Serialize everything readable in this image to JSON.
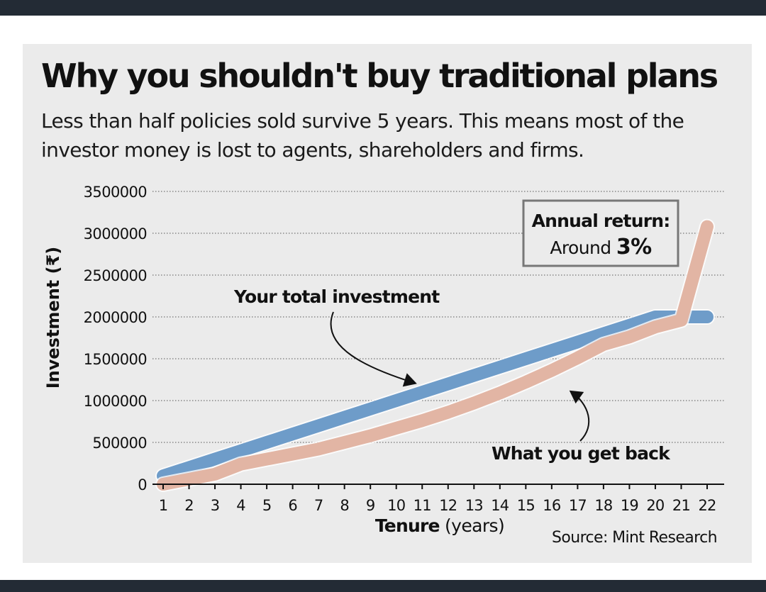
{
  "page": {
    "title": "Why you shouldn't buy traditional plans",
    "subtitle": "Less than half policies sold survive 5 years. This means most of the investor money is lost to agents, shareholders and firms.",
    "source": "Source: Mint Research"
  },
  "chart_data": {
    "type": "line",
    "ylabel": "Investment (₹)",
    "xlabel_bold": "Tenure",
    "xlabel_rest": " (years)",
    "ylim": [
      0,
      3500000
    ],
    "yticks": [
      0,
      500000,
      1000000,
      1500000,
      2000000,
      2500000,
      3000000,
      3500000
    ],
    "x": [
      1,
      2,
      3,
      4,
      5,
      6,
      7,
      8,
      9,
      10,
      11,
      12,
      13,
      14,
      15,
      16,
      17,
      18,
      19,
      20,
      21,
      22
    ],
    "grid": true,
    "series": [
      {
        "name": "Your total investment",
        "color": "#6e9cc9",
        "values": [
          100000,
          200000,
          300000,
          400000,
          500000,
          600000,
          700000,
          800000,
          900000,
          1000000,
          1100000,
          1200000,
          1300000,
          1400000,
          1500000,
          1600000,
          1700000,
          1800000,
          1900000,
          2000000,
          2000000,
          2000000
        ]
      },
      {
        "name": "What you get back",
        "color": "#e2b5a4",
        "values": [
          0,
          60000,
          120000,
          240000,
          300000,
          360000,
          420000,
          500000,
          580000,
          670000,
          760000,
          860000,
          970000,
          1090000,
          1220000,
          1360000,
          1510000,
          1670000,
          1760000,
          1880000,
          1960000,
          3080000
        ]
      }
    ],
    "annotation": {
      "line1": "Annual return:",
      "line2_prefix": "Around ",
      "line2_value": "3%"
    }
  }
}
